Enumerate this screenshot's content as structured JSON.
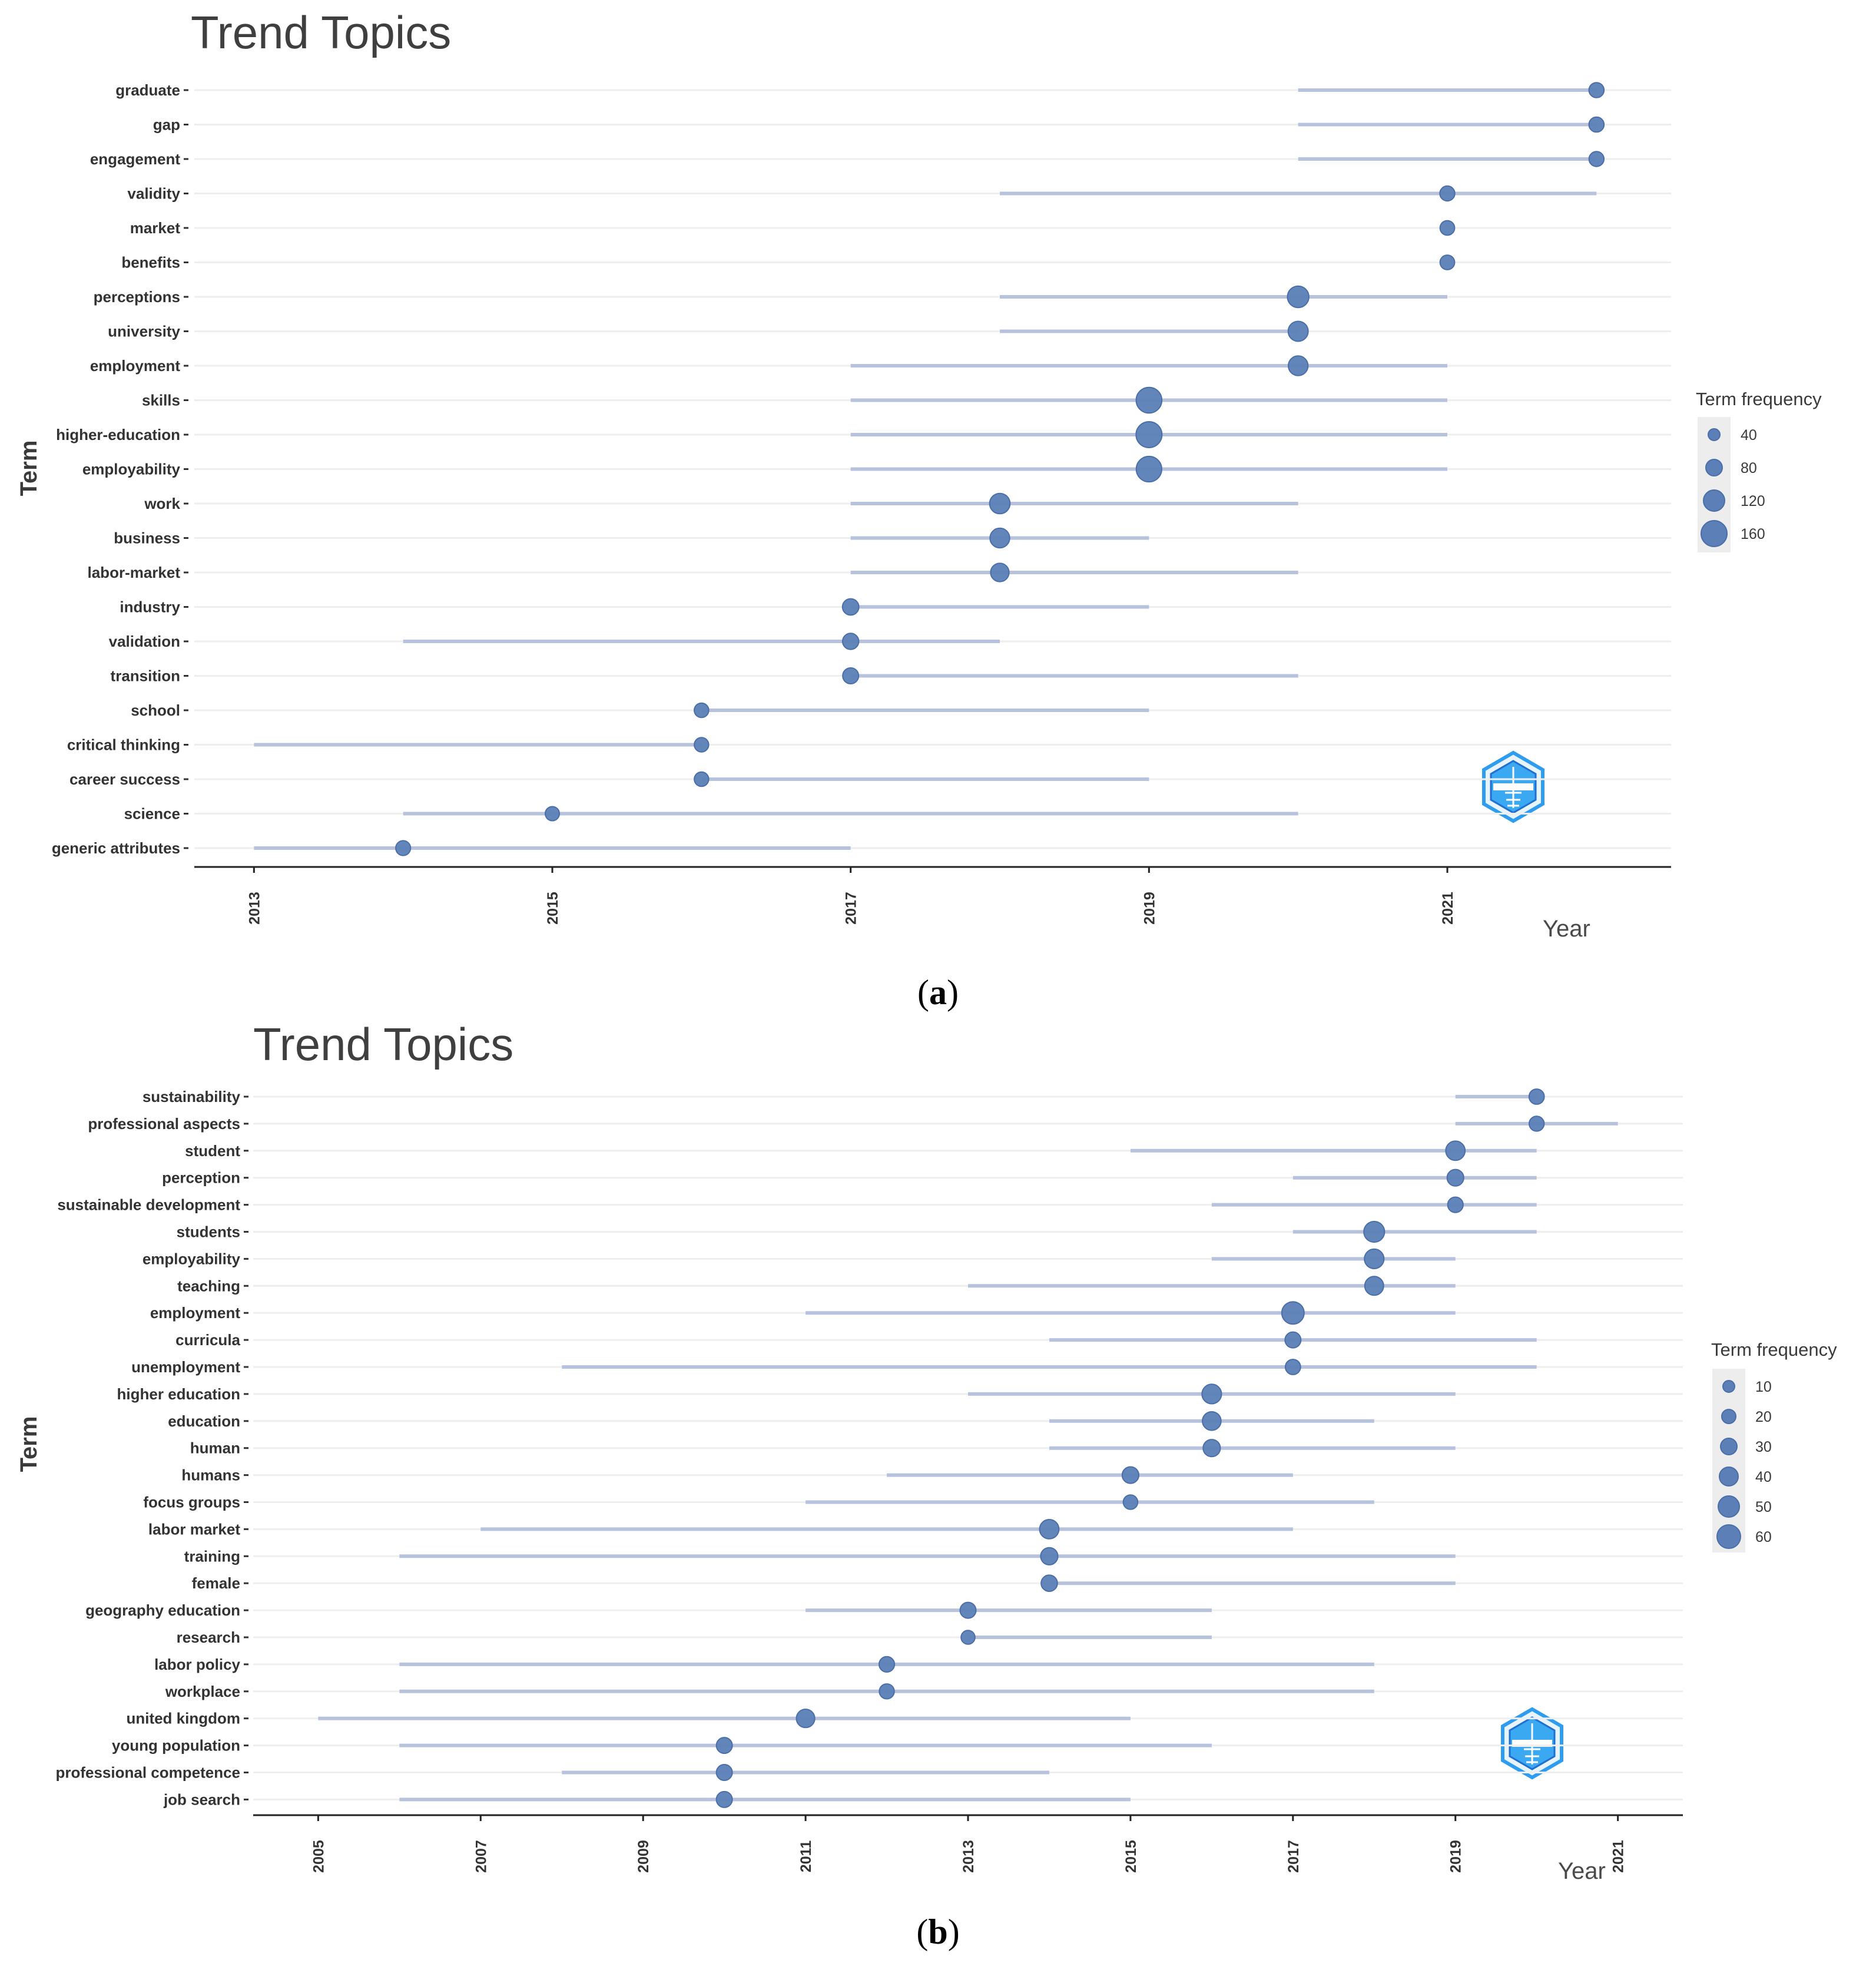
{
  "colors": {
    "segment": "#b7c2dd",
    "point": "#5b7fb6",
    "point_stroke": "#4a6ea8",
    "grid": "#eeeeee",
    "axis": "#222222",
    "legend_bg": "#ededed",
    "logo": "#2e9df0"
  },
  "chart_data": [
    {
      "type": "scatter",
      "panel_id": "a",
      "title": "Trend Topics",
      "xlabel": "Year",
      "ylabel": "Term",
      "xlim": [
        2012.6,
        2022.5
      ],
      "xticks": [
        "2013",
        "2015",
        "2017",
        "2019",
        "2021"
      ],
      "legend": {
        "title": "Term frequency",
        "position": "right",
        "sizes": [
          40,
          80,
          120,
          160
        ],
        "labels": [
          "40",
          "80",
          "120",
          "160"
        ]
      },
      "caption": {
        "open": "(",
        "letter": "a",
        "close": ")"
      },
      "terms": [
        {
          "term": "graduate",
          "q1": 2020,
          "median": 2022,
          "q3": 2022,
          "freq": 20
        },
        {
          "term": "gap",
          "q1": 2020,
          "median": 2022,
          "q3": 2022,
          "freq": 20
        },
        {
          "term": "engagement",
          "q1": 2020,
          "median": 2022,
          "q3": 2022,
          "freq": 19
        },
        {
          "term": "validity",
          "q1": 2018,
          "median": 2021,
          "q3": 2022,
          "freq": 19
        },
        {
          "term": "market",
          "q1": 2021,
          "median": 2021,
          "q3": 2021,
          "freq": 17
        },
        {
          "term": "benefits",
          "q1": 2021,
          "median": 2021,
          "q3": 2021,
          "freq": 17
        },
        {
          "term": "perceptions",
          "q1": 2018,
          "median": 2020,
          "q3": 2021,
          "freq": 90
        },
        {
          "term": "university",
          "q1": 2018,
          "median": 2020,
          "q3": 2020,
          "freq": 70
        },
        {
          "term": "employment",
          "q1": 2017,
          "median": 2020,
          "q3": 2021,
          "freq": 65
        },
        {
          "term": "skills",
          "q1": 2017,
          "median": 2019,
          "q3": 2021,
          "freq": 165
        },
        {
          "term": "higher-education",
          "q1": 2017,
          "median": 2019,
          "q3": 2021,
          "freq": 170
        },
        {
          "term": "employability",
          "q1": 2017,
          "median": 2019,
          "q3": 2021,
          "freq": 160
        },
        {
          "term": "work",
          "q1": 2017,
          "median": 2018,
          "q3": 2020,
          "freq": 75
        },
        {
          "term": "business",
          "q1": 2017,
          "median": 2018,
          "q3": 2019,
          "freq": 65
        },
        {
          "term": "labor-market",
          "q1": 2017,
          "median": 2018,
          "q3": 2020,
          "freq": 50
        },
        {
          "term": "industry",
          "q1": 2017,
          "median": 2017,
          "q3": 2019,
          "freq": 30
        },
        {
          "term": "validation",
          "q1": 2014,
          "median": 2017,
          "q3": 2018,
          "freq": 28
        },
        {
          "term": "transition",
          "q1": 2017,
          "median": 2017,
          "q3": 2020,
          "freq": 26
        },
        {
          "term": "school",
          "q1": 2016,
          "median": 2016,
          "q3": 2019,
          "freq": 16
        },
        {
          "term": "critical thinking",
          "q1": 2013,
          "median": 2016,
          "q3": 2016,
          "freq": 15
        },
        {
          "term": "career success",
          "q1": 2016,
          "median": 2016,
          "q3": 2019,
          "freq": 15
        },
        {
          "term": "science",
          "q1": 2014,
          "median": 2015,
          "q3": 2020,
          "freq": 14
        },
        {
          "term": "generic attributes",
          "q1": 2013,
          "median": 2014,
          "q3": 2017,
          "freq": 18
        }
      ]
    },
    {
      "type": "scatter",
      "panel_id": "b",
      "title": "Trend Topics",
      "xlabel": "Year",
      "ylabel": "Term",
      "xlim": [
        2004.2,
        2021.8
      ],
      "xticks": [
        "2005",
        "2007",
        "2009",
        "2011",
        "2013",
        "2015",
        "2017",
        "2019",
        "2021"
      ],
      "legend": {
        "title": "Term frequency",
        "position": "right",
        "sizes": [
          10,
          20,
          30,
          40,
          50,
          60
        ],
        "labels": [
          "10",
          "20",
          "30",
          "40",
          "50",
          "60"
        ]
      },
      "caption": {
        "open": "(",
        "letter": "b",
        "close": ")"
      },
      "terms": [
        {
          "term": "sustainability",
          "q1": 2019,
          "median": 2020,
          "q3": 2020,
          "freq": 15
        },
        {
          "term": "professional aspects",
          "q1": 2019,
          "median": 2020,
          "q3": 2021,
          "freq": 14
        },
        {
          "term": "student",
          "q1": 2015,
          "median": 2019,
          "q3": 2020,
          "freq": 38
        },
        {
          "term": "perception",
          "q1": 2017,
          "median": 2019,
          "q3": 2020,
          "freq": 22
        },
        {
          "term": "sustainable development",
          "q1": 2016,
          "median": 2019,
          "q3": 2020,
          "freq": 16
        },
        {
          "term": "students",
          "q1": 2017,
          "median": 2018,
          "q3": 2020,
          "freq": 48
        },
        {
          "term": "employability",
          "q1": 2016,
          "median": 2018,
          "q3": 2019,
          "freq": 40
        },
        {
          "term": "teaching",
          "q1": 2013,
          "median": 2018,
          "q3": 2019,
          "freq": 35
        },
        {
          "term": "employment",
          "q1": 2011,
          "median": 2017,
          "q3": 2019,
          "freq": 62
        },
        {
          "term": "curricula",
          "q1": 2014,
          "median": 2017,
          "q3": 2020,
          "freq": 18
        },
        {
          "term": "unemployment",
          "q1": 2008,
          "median": 2017,
          "q3": 2020,
          "freq": 15
        },
        {
          "term": "higher education",
          "q1": 2013,
          "median": 2016,
          "q3": 2019,
          "freq": 40
        },
        {
          "term": "education",
          "q1": 2014,
          "median": 2016,
          "q3": 2018,
          "freq": 33
        },
        {
          "term": "human",
          "q1": 2014,
          "median": 2016,
          "q3": 2019,
          "freq": 25
        },
        {
          "term": "humans",
          "q1": 2012,
          "median": 2015,
          "q3": 2017,
          "freq": 22
        },
        {
          "term": "focus groups",
          "q1": 2011,
          "median": 2015,
          "q3": 2018,
          "freq": 12
        },
        {
          "term": "labor market",
          "q1": 2007,
          "median": 2014,
          "q3": 2017,
          "freq": 38
        },
        {
          "term": "training",
          "q1": 2006,
          "median": 2014,
          "q3": 2019,
          "freq": 25
        },
        {
          "term": "female",
          "q1": 2014,
          "median": 2014,
          "q3": 2019,
          "freq": 20
        },
        {
          "term": "geography education",
          "q1": 2011,
          "median": 2013,
          "q3": 2016,
          "freq": 18
        },
        {
          "term": "research",
          "q1": 2013,
          "median": 2013,
          "q3": 2016,
          "freq": 10
        },
        {
          "term": "labor policy",
          "q1": 2006,
          "median": 2012,
          "q3": 2018,
          "freq": 16
        },
        {
          "term": "workplace",
          "q1": 2006,
          "median": 2012,
          "q3": 2018,
          "freq": 14
        },
        {
          "term": "united kingdom",
          "q1": 2005,
          "median": 2011,
          "q3": 2015,
          "freq": 32
        },
        {
          "term": "young population",
          "q1": 2006,
          "median": 2010,
          "q3": 2016,
          "freq": 18
        },
        {
          "term": "professional competence",
          "q1": 2008,
          "median": 2010,
          "q3": 2014,
          "freq": 18
        },
        {
          "term": "job search",
          "q1": 2006,
          "median": 2010,
          "q3": 2015,
          "freq": 18
        }
      ]
    }
  ]
}
